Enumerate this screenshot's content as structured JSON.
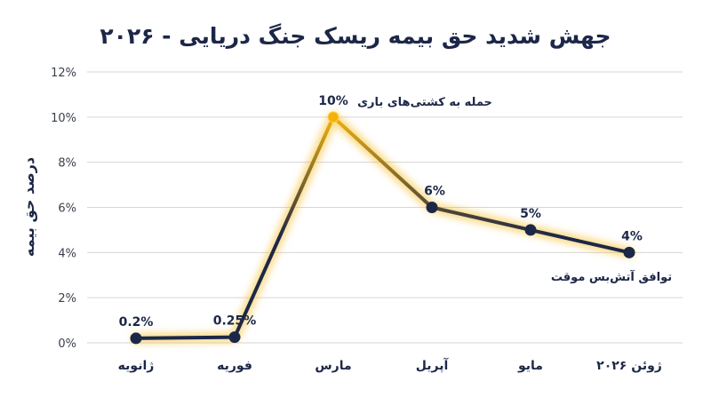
{
  "chart_data": {
    "type": "line",
    "title": "جهش شدید حق بیمه ریسک جنگ دریایی - ۲۰۲۶",
    "xlabel": "",
    "ylabel": "درصد حق بیمه",
    "categories": [
      "ژانویه",
      "فوریه",
      "مارس",
      "آپریل",
      "مایو",
      "ژوئن ۲۰۲۶"
    ],
    "values": [
      0.2,
      0.25,
      10,
      6,
      5,
      4
    ],
    "data_labels": [
      "0.2%",
      "0.25%",
      "10%",
      "6%",
      "5%",
      "4%"
    ],
    "ylim": [
      0,
      12
    ],
    "yticks": [
      0,
      2,
      4,
      6,
      8,
      10,
      12
    ],
    "ytick_labels": [
      "0%",
      "2%",
      "4%",
      "6%",
      "8%",
      "10%",
      "12%"
    ],
    "grid": true,
    "annotations": [
      {
        "point_index": 2,
        "text": "حمله به کشتی‌های باری"
      },
      {
        "point_index": 5,
        "text": "توافق آتش‌بس موقت"
      }
    ],
    "colors": {
      "line": "#1c2748",
      "glow": "#f5b20a",
      "peak_marker": "#f5b20a",
      "marker": "#1c2748",
      "grid": "#d6d6d6"
    }
  }
}
